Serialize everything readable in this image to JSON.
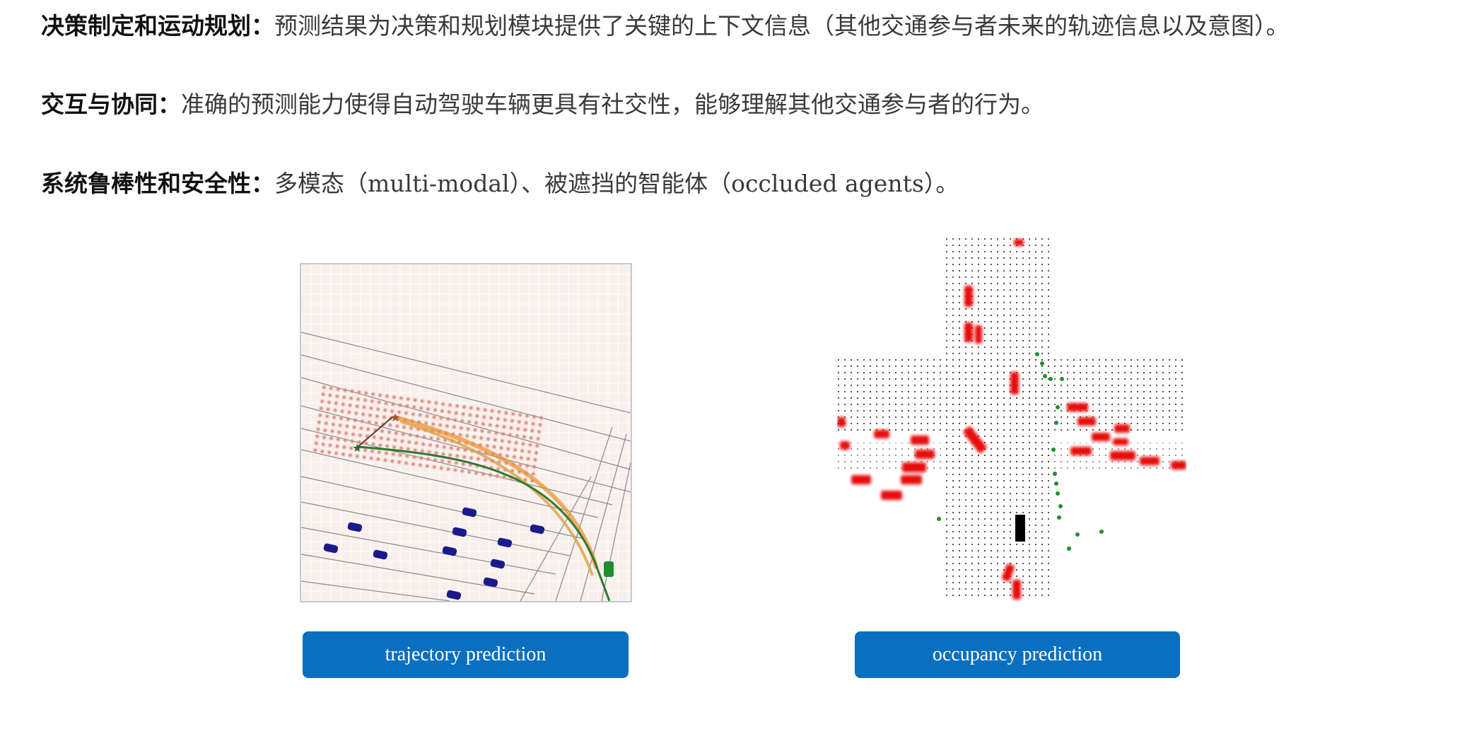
{
  "paragraphs": [
    {
      "label": "决策制定和运动规划：",
      "text": "预测结果为决策和规划模块提供了关键的上下文信息（其他交通参与者未来的轨迹信息以及意图）。"
    },
    {
      "label": "交互与协同：",
      "text": "准确的预测能力使得自动驾驶车辆更具有社交性，能够理解其他交通参与者的行为。"
    },
    {
      "label": "系统鲁棒性和安全性：",
      "text": "多模态（multi-modal）、被遮挡的智能体（occluded agents）。"
    }
  ],
  "figures": [
    {
      "caption": "trajectory prediction",
      "icon": "trajectory-prediction-image"
    },
    {
      "caption": "occupancy prediction",
      "icon": "occupancy-prediction-image"
    }
  ],
  "colors": {
    "button_bg": "#0b6fc0",
    "button_text": "#ffffff",
    "ego_vehicle": "#1e8f2e",
    "other_vehicles": "#1a1a8c",
    "heatmap": "#e07a6a",
    "trajectory": "#e8902a",
    "occupied": "#e81010"
  }
}
